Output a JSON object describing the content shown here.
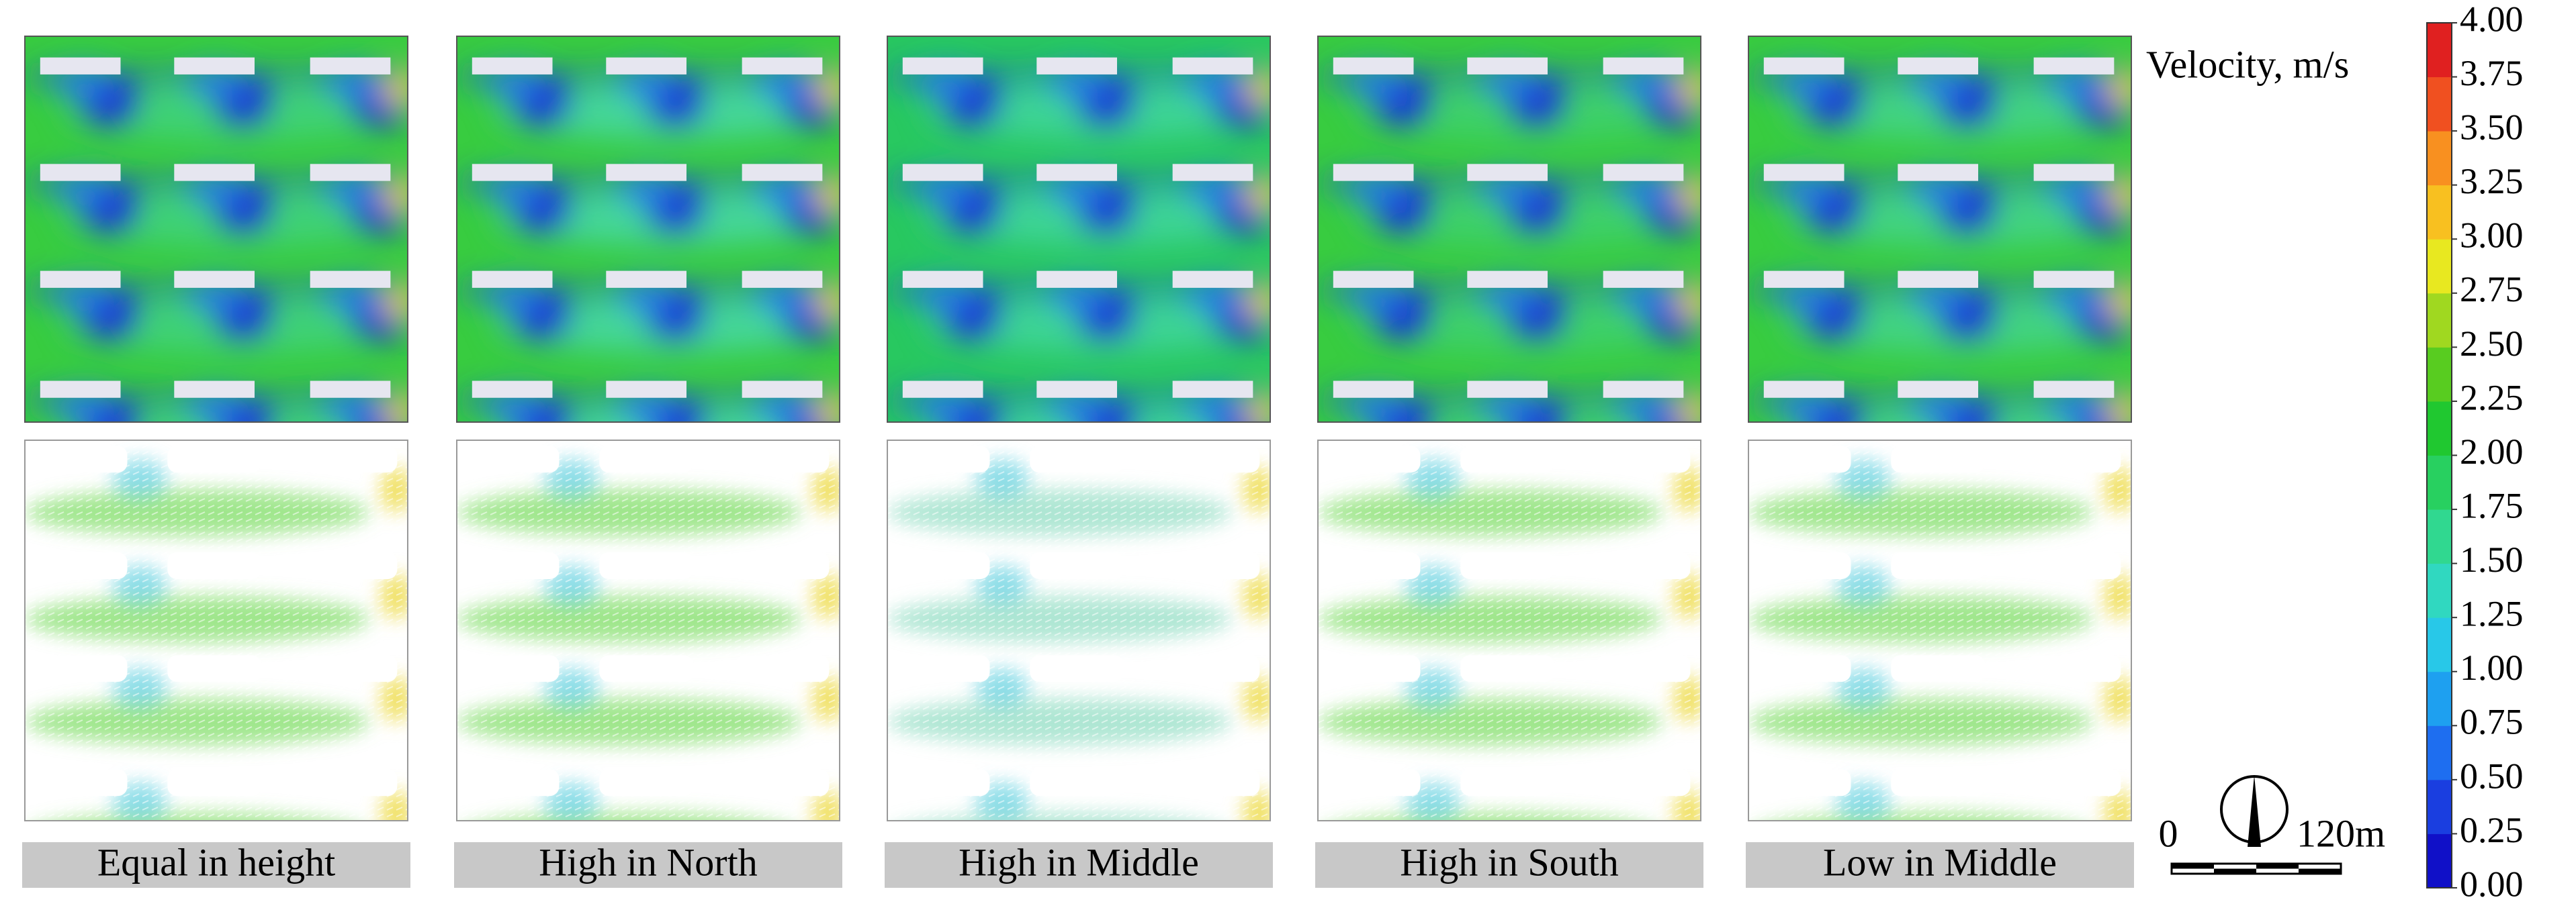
{
  "panels": [
    {
      "label": "Equal in height"
    },
    {
      "label": "High in North"
    },
    {
      "label": "High in Middle"
    },
    {
      "label": "High in South"
    },
    {
      "label": "Low in Middle"
    }
  ],
  "colorbar": {
    "title": "Velocity, m/s",
    "lim": [
      0,
      4
    ],
    "ticks": [
      {
        "value": 0,
        "label": "0.00"
      },
      {
        "value": 0.25,
        "label": "0.25"
      },
      {
        "value": 0.5,
        "label": "0.50"
      },
      {
        "value": 0.75,
        "label": "0.75"
      },
      {
        "value": 1,
        "label": "1.00"
      },
      {
        "value": 1.25,
        "label": "1.25"
      },
      {
        "value": 1.5,
        "label": "1.50"
      },
      {
        "value": 1.75,
        "label": "1.75"
      },
      {
        "value": 2,
        "label": "2.00"
      },
      {
        "value": 2.25,
        "label": "2.25"
      },
      {
        "value": 2.5,
        "label": "2.50"
      },
      {
        "value": 2.75,
        "label": "2.75"
      },
      {
        "value": 3,
        "label": "3.00"
      },
      {
        "value": 3.25,
        "label": "3.25"
      },
      {
        "value": 3.5,
        "label": "3.50"
      },
      {
        "value": 3.75,
        "label": "3.75"
      },
      {
        "value": 4,
        "label": "4.00"
      }
    ],
    "colors": [
      "#1010c8",
      "#1a3ee0",
      "#1e6ef0",
      "#1ea0f0",
      "#28c8e8",
      "#30d8c0",
      "#30d890",
      "#28d060",
      "#20c830",
      "#58cc20",
      "#a0d820",
      "#e8e820",
      "#f8c020",
      "#f89020",
      "#f05020",
      "#e02020"
    ]
  },
  "scale_bar": {
    "start": "0",
    "end": "120m"
  }
}
